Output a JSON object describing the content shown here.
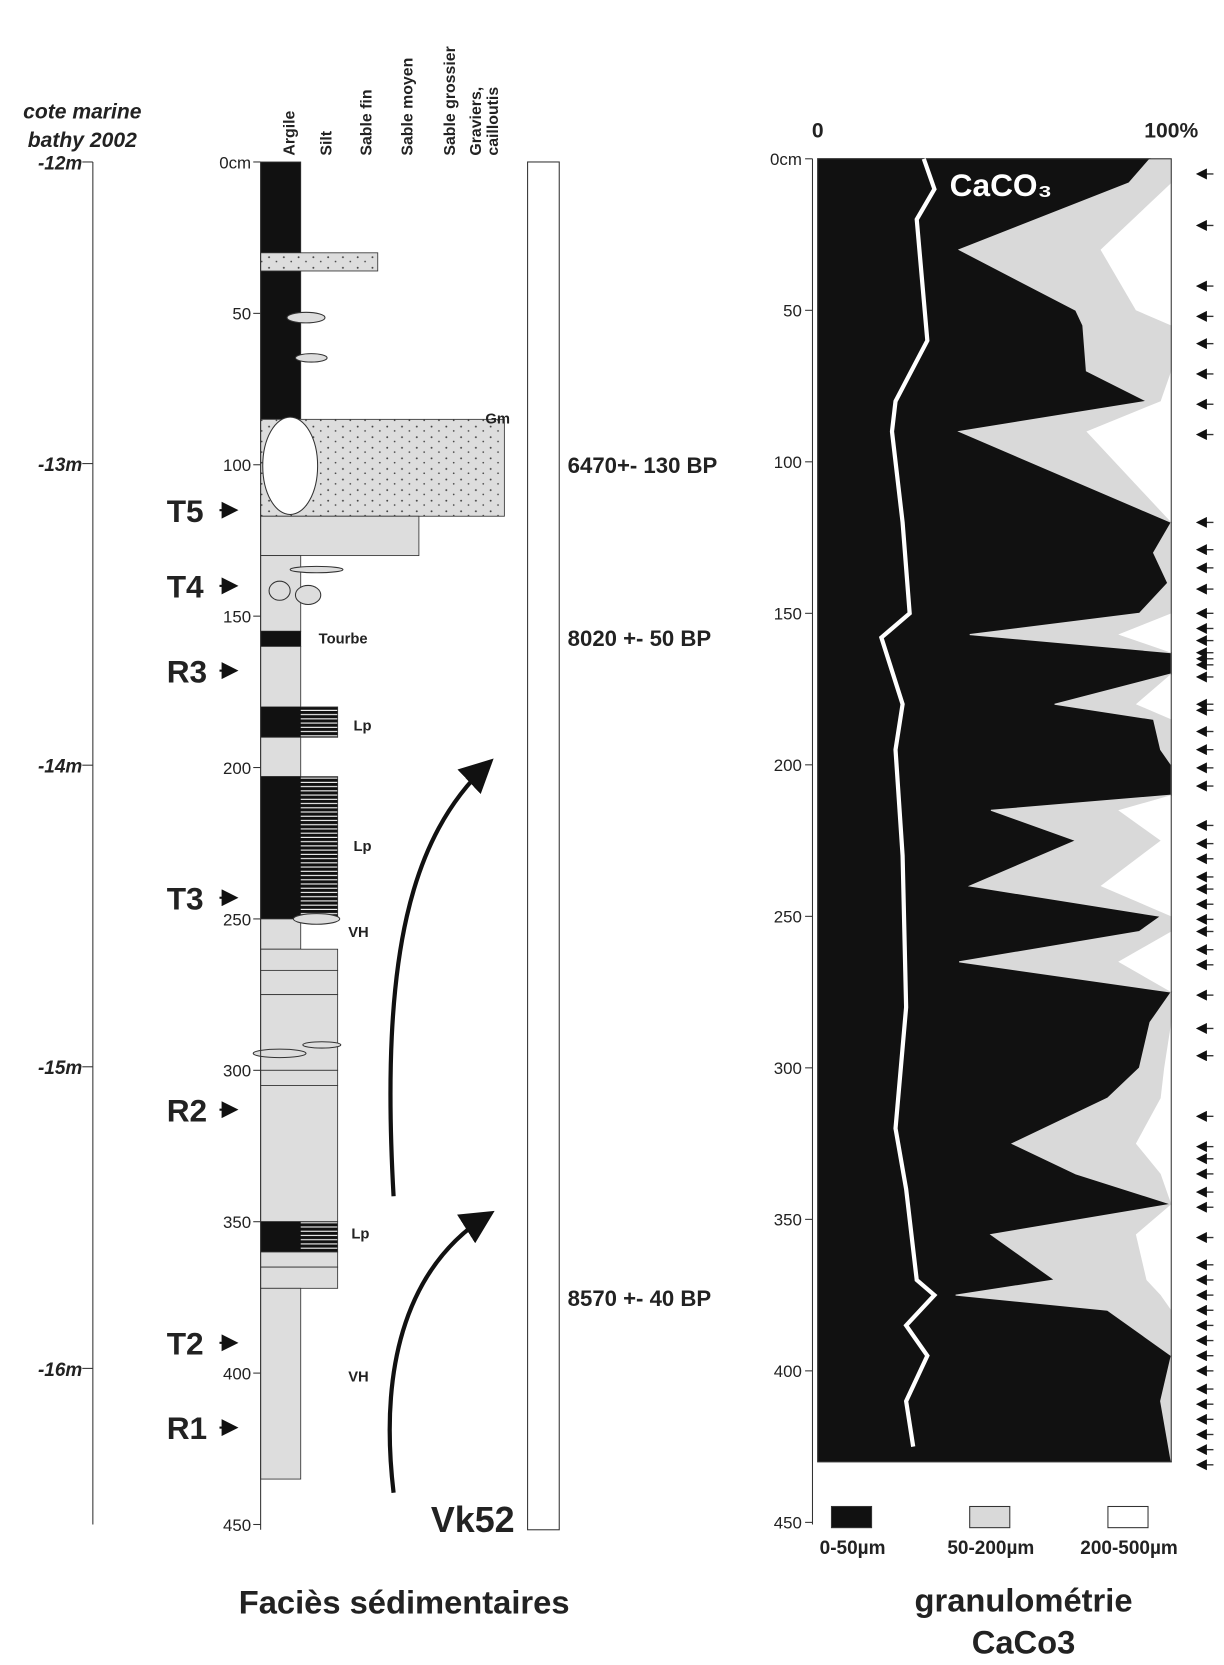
{
  "chart_data": [
    {
      "type": "log",
      "title": "Faciès sédimentaires",
      "core": "Vk52",
      "elevation_label": [
        "cote marine",
        "bathy 2002"
      ],
      "elevation_lim": [
        -12,
        -16.5
      ],
      "elevation_ticks": [
        {
          "value": -12,
          "label": "-12m"
        },
        {
          "value": -13,
          "label": "-13m"
        },
        {
          "value": -14,
          "label": "-14m"
        },
        {
          "value": -15,
          "label": "-15m"
        },
        {
          "value": -16,
          "label": "-16m"
        }
      ],
      "ylim": [
        0,
        450
      ],
      "yticks": [
        {
          "value": 0,
          "label": "0cm"
        },
        50,
        100,
        150,
        200,
        250,
        300,
        350,
        400,
        450
      ],
      "grain_classes": [
        [
          "Argile"
        ],
        [
          "Silt"
        ],
        [
          "Sable fin"
        ],
        [
          "Sable moyen"
        ],
        [
          "Sable grossier"
        ],
        [
          "Graviers,",
          "cailloutis"
        ]
      ],
      "layers": [
        {
          "top": 0,
          "bottom": 85,
          "class": 1,
          "fill": "black"
        },
        {
          "top": 30,
          "bottom": 36,
          "class": 3,
          "fill": "speckled"
        },
        {
          "top": 85,
          "bottom": 117,
          "class": 6,
          "fill": "speckled"
        },
        {
          "top": 117,
          "bottom": 130,
          "class": 4,
          "fill": "grey"
        },
        {
          "top": 130,
          "bottom": 155,
          "class": 1,
          "fill": "grey"
        },
        {
          "top": 155,
          "bottom": 160,
          "class": 1,
          "fill": "laminated"
        },
        {
          "top": 160,
          "bottom": 180,
          "class": 1,
          "fill": "grey"
        },
        {
          "top": 180,
          "bottom": 190,
          "class": 2,
          "fill": "laminated"
        },
        {
          "top": 190,
          "bottom": 203,
          "class": 1,
          "fill": "grey"
        },
        {
          "top": 203,
          "bottom": 250,
          "class": 2,
          "fill": "laminated"
        },
        {
          "top": 250,
          "bottom": 260,
          "class": 1,
          "fill": "grey"
        },
        {
          "top": 260,
          "bottom": 267,
          "class": 2,
          "fill": "grey"
        },
        {
          "top": 267,
          "bottom": 275,
          "class": 2,
          "fill": "grey"
        },
        {
          "top": 275,
          "bottom": 300,
          "class": 2,
          "fill": "grey"
        },
        {
          "top": 300,
          "bottom": 305,
          "class": 2,
          "fill": "grey"
        },
        {
          "top": 305,
          "bottom": 350,
          "class": 2,
          "fill": "grey"
        },
        {
          "top": 350,
          "bottom": 360,
          "class": 2,
          "fill": "laminated"
        },
        {
          "top": 360,
          "bottom": 365,
          "class": 2,
          "fill": "grey"
        },
        {
          "top": 365,
          "bottom": 372,
          "class": 2,
          "fill": "grey"
        },
        {
          "top": 372,
          "bottom": 435,
          "class": 1,
          "fill": "grey"
        }
      ],
      "units": [
        {
          "name": "T5",
          "depth": 115
        },
        {
          "name": "T4",
          "depth": 140
        },
        {
          "name": "R3",
          "depth": 168
        },
        {
          "name": "T3",
          "depth": 243
        },
        {
          "name": "R2",
          "depth": 313
        },
        {
          "name": "T2",
          "depth": 390
        },
        {
          "name": "R1",
          "depth": 418
        }
      ],
      "annotations": [
        "Gm",
        "Tourbe",
        "Lp",
        "Lp",
        "VH",
        "Lp",
        "VH"
      ],
      "dates": [
        {
          "text": "6470+- 130 BP",
          "depth": 100
        },
        {
          "text": "8020 +- 50 BP",
          "depth": 157
        },
        {
          "text": "8570 +- 40 BP",
          "depth": 375
        }
      ]
    },
    {
      "type": "area",
      "title": [
        "granulométrie",
        "CaCo3"
      ],
      "xlim": [
        0,
        100
      ],
      "xticks": [
        {
          "value": 0,
          "label": "0"
        },
        {
          "value": 100,
          "label": "100%"
        }
      ],
      "ylim": [
        0,
        450
      ],
      "yticks": [
        {
          "value": 0,
          "label": "0cm"
        },
        50,
        100,
        150,
        200,
        250,
        300,
        350,
        400,
        450
      ],
      "depth": [
        0,
        8,
        30,
        50,
        55,
        70,
        80,
        90,
        120,
        130,
        140,
        150,
        157,
        163,
        170,
        180,
        185,
        195,
        200,
        210,
        215,
        225,
        240,
        250,
        255,
        265,
        275,
        285,
        300,
        310,
        325,
        335,
        345,
        355,
        370,
        375,
        380,
        395,
        410,
        430
      ],
      "series": [
        {
          "name": "0-50µm",
          "color": "#111111",
          "values": [
            94,
            88,
            40,
            73,
            75,
            76,
            93,
            40,
            100,
            95,
            99,
            91,
            43,
            100,
            100,
            67,
            95,
            97,
            100,
            100,
            49,
            73,
            43,
            97,
            91,
            40,
            100,
            94,
            91,
            82,
            55,
            73,
            100,
            49,
            67,
            39,
            82,
            100,
            97,
            100
          ]
        },
        {
          "name": "50-200µm",
          "color": "#d9d9d9",
          "values": [
            6,
            12,
            40,
            17,
            25,
            24,
            4,
            36,
            0,
            5,
            1,
            9,
            42,
            0,
            0,
            23,
            5,
            3,
            0,
            0,
            36,
            24,
            37,
            3,
            9,
            45,
            0,
            6,
            7,
            15,
            35,
            24,
            0,
            41,
            26,
            58,
            18,
            0,
            3,
            0
          ]
        },
        {
          "name": "200-500µm",
          "color": "#ffffff",
          "values": [
            0,
            0,
            20,
            10,
            0,
            0,
            3,
            24,
            0,
            0,
            0,
            0,
            15,
            0,
            0,
            10,
            0,
            0,
            0,
            0,
            15,
            3,
            20,
            0,
            0,
            15,
            0,
            0,
            2,
            3,
            10,
            3,
            0,
            10,
            7,
            3,
            0,
            0,
            0,
            0
          ]
        }
      ],
      "line": {
        "name": "CaCO₃",
        "color": "#ffffff",
        "depth": [
          0,
          10,
          20,
          60,
          80,
          90,
          120,
          150,
          158,
          180,
          195,
          230,
          280,
          320,
          340,
          370,
          375,
          385,
          395,
          410,
          425
        ],
        "values": [
          30,
          33,
          28,
          31,
          22,
          21,
          24,
          26,
          18,
          24,
          22,
          24,
          25,
          22,
          25,
          28,
          33,
          25,
          31,
          25,
          27
        ]
      },
      "sample_depths": [
        5,
        22,
        42,
        52,
        61,
        71,
        81,
        91,
        120,
        129,
        135,
        142,
        150,
        155,
        159,
        163,
        165,
        167,
        171,
        180,
        182,
        189,
        195,
        201,
        207,
        220,
        226,
        231,
        237,
        241,
        246,
        251,
        255,
        261,
        266,
        276,
        287,
        296,
        316,
        326,
        330,
        335,
        341,
        346,
        356,
        365,
        370,
        375,
        380,
        385,
        390,
        395,
        400,
        406,
        411,
        416,
        421,
        426,
        431
      ]
    }
  ]
}
